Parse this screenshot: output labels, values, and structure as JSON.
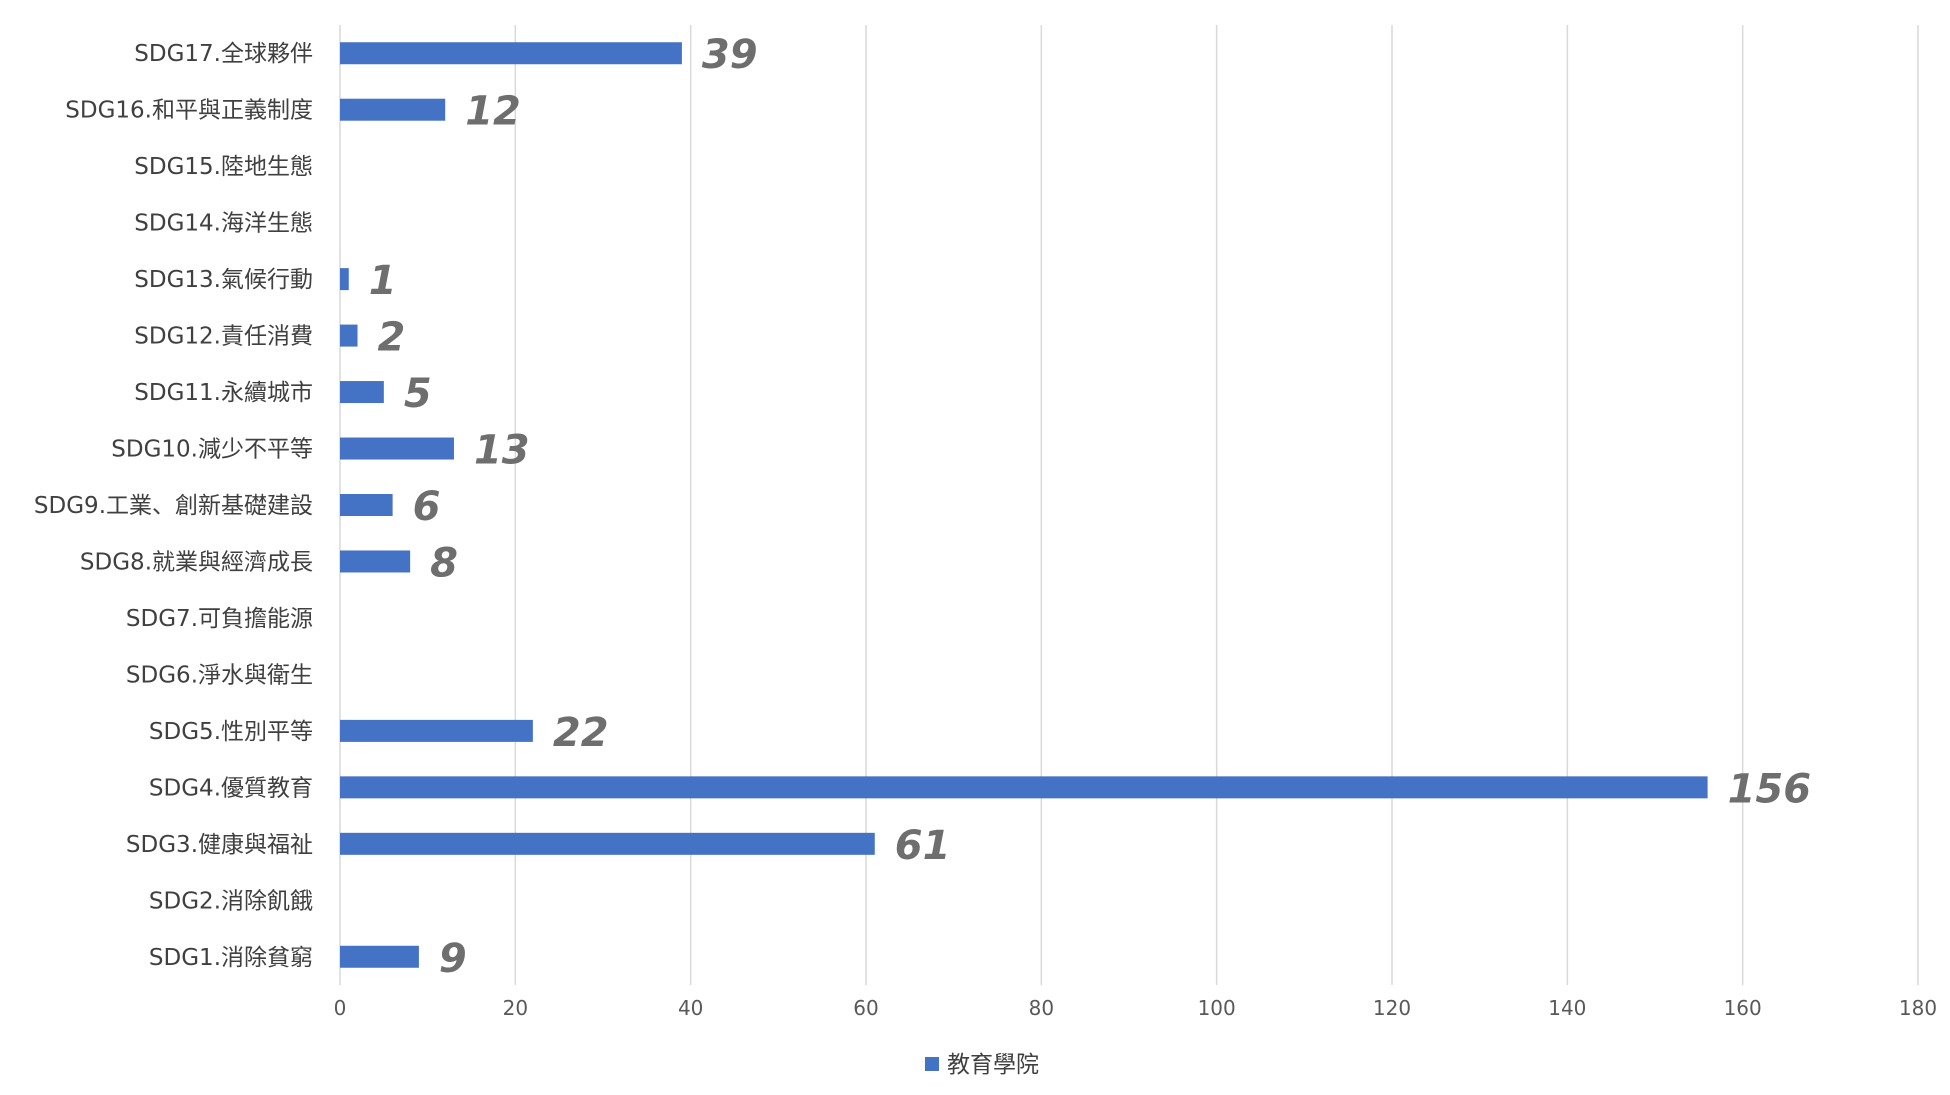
{
  "chart_data": {
    "type": "bar",
    "orientation": "horizontal",
    "categories": [
      "SDG1.消除貧窮",
      "SDG2.消除飢餓",
      "SDG3.健康與福祉",
      "SDG4.優質教育",
      "SDG5.性別平等",
      "SDG6.淨水與衛生",
      "SDG7.可負擔能源",
      "SDG8.就業與經濟成長",
      "SDG9.工業、創新基礎建設",
      "SDG10.減少不平等",
      "SDG11.永續城市",
      "SDG12.責任消費",
      "SDG13.氣候行動",
      "SDG14.海洋生態",
      "SDG15.陸地生態",
      "SDG16.和平與正義制度",
      "SDG17.全球夥伴"
    ],
    "series": [
      {
        "name": "教育學院",
        "color": "#4472c4",
        "values": [
          9,
          null,
          61,
          156,
          22,
          null,
          null,
          8,
          6,
          13,
          5,
          2,
          1,
          null,
          null,
          12,
          39
        ]
      }
    ],
    "xlim": [
      0,
      180
    ],
    "xticks": [
      "0",
      "20",
      "40",
      "60",
      "80",
      "100",
      "120",
      "140",
      "160",
      "180"
    ],
    "xtick_values": [
      0,
      20,
      40,
      60,
      80,
      100,
      120,
      140,
      160,
      180
    ],
    "xlabel": "",
    "ylabel": "",
    "title": "",
    "grid": "vertical",
    "legend": "bottom-center",
    "data_labels": true
  }
}
